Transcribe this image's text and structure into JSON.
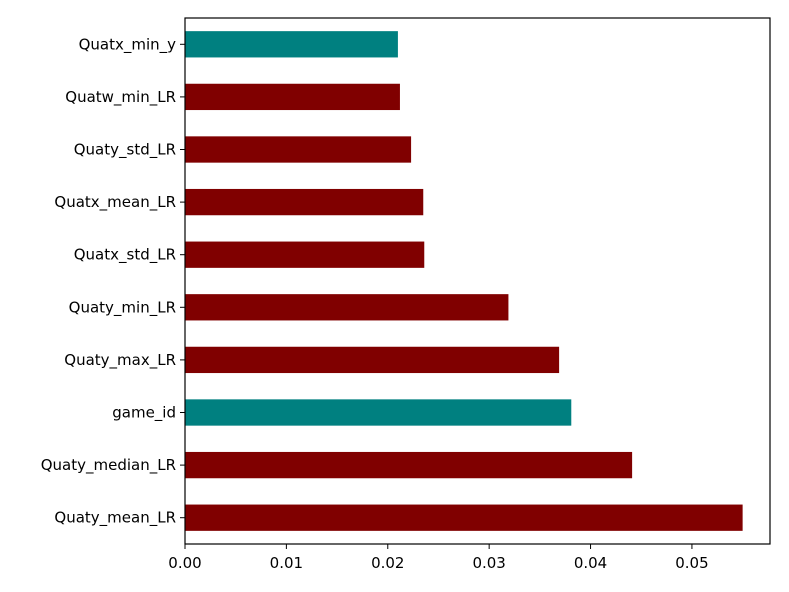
{
  "chart_data": {
    "type": "bar",
    "orientation": "horizontal",
    "categories": [
      "Quaty_mean_LR",
      "Quaty_median_LR",
      "game_id",
      "Quaty_max_LR",
      "Quaty_min_LR",
      "Quatx_std_LR",
      "Quatx_mean_LR",
      "Quaty_std_LR",
      "Quatw_min_LR",
      "Quatx_min_y"
    ],
    "values": [
      0.055,
      0.0441,
      0.0381,
      0.0369,
      0.0319,
      0.0236,
      0.0235,
      0.0223,
      0.0212,
      0.021
    ],
    "bar_colors": [
      "#800000",
      "#800000",
      "#008080",
      "#800000",
      "#800000",
      "#800000",
      "#800000",
      "#800000",
      "#800000",
      "#008080"
    ],
    "xlim": [
      0,
      0.0577
    ],
    "xticks": [
      0.0,
      0.01,
      0.02,
      0.03,
      0.04,
      0.05
    ],
    "xtick_labels": [
      "0.00",
      "0.01",
      "0.02",
      "0.03",
      "0.04",
      "0.05"
    ],
    "title": "",
    "xlabel": "",
    "ylabel": "",
    "grid": false,
    "legend": "none"
  }
}
